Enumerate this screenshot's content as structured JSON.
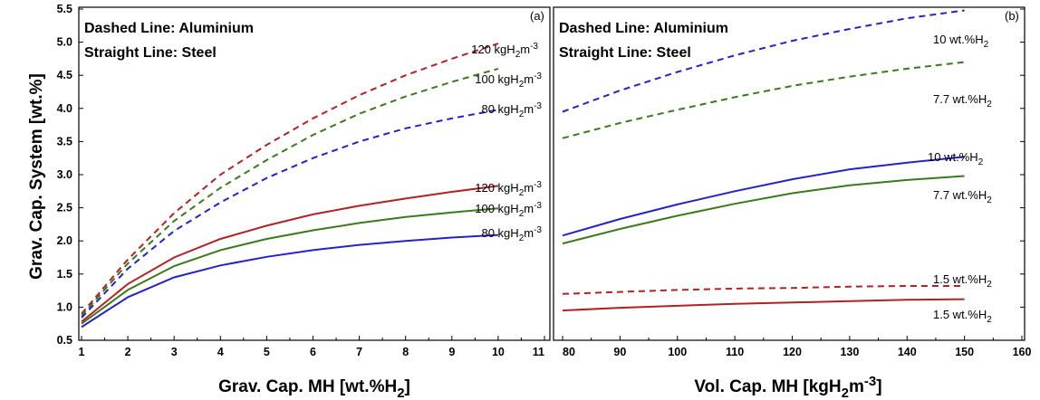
{
  "chart_data": [
    {
      "type": "line",
      "panel_label": "(a)",
      "notes": [
        "Dashed Line: Aluminium",
        "Straight Line: Steel"
      ],
      "xlabel": "Grav. Cap. MH [wt.%H2]",
      "ylabel": "Grav. Cap. System [wt.%]",
      "xlim": [
        1,
        11
      ],
      "ylim": [
        0.5,
        5.5
      ],
      "x_ticks": [
        "1",
        "2",
        "3",
        "4",
        "5",
        "6",
        "7",
        "8",
        "9",
        "10",
        "11"
      ],
      "y_ticks": [
        "0.5",
        "1.0",
        "1.5",
        "2.0",
        "2.5",
        "3.0",
        "3.5",
        "4.0",
        "4.5",
        "5.0",
        "5.5"
      ],
      "series": [
        {
          "name": "120 kgH2m-3",
          "material": "Aluminium",
          "color": "#b22222",
          "dash": true,
          "x": [
            1,
            2,
            3,
            4,
            5,
            6,
            7,
            8,
            9,
            10
          ],
          "y": [
            0.9,
            1.72,
            2.42,
            3.0,
            3.45,
            3.85,
            4.2,
            4.5,
            4.75,
            4.98
          ]
        },
        {
          "name": "100 kgH2m-3",
          "material": "Aluminium",
          "color": "#3a7a1a",
          "dash": true,
          "x": [
            1,
            2,
            3,
            4,
            5,
            6,
            7,
            8,
            9,
            10
          ],
          "y": [
            0.87,
            1.66,
            2.3,
            2.8,
            3.22,
            3.6,
            3.92,
            4.18,
            4.4,
            4.6
          ]
        },
        {
          "name": "80 kgH2m-3",
          "material": "Aluminium",
          "color": "#2323c8",
          "dash": true,
          "x": [
            1,
            2,
            3,
            4,
            5,
            6,
            7,
            8,
            9,
            10
          ],
          "y": [
            0.84,
            1.58,
            2.15,
            2.58,
            2.95,
            3.25,
            3.5,
            3.7,
            3.85,
            3.98
          ]
        },
        {
          "name": "120 kgH2m-3",
          "material": "Steel",
          "color": "#b22222",
          "dash": false,
          "x": [
            1,
            2,
            3,
            4,
            5,
            6,
            7,
            8,
            9,
            10
          ],
          "y": [
            0.78,
            1.35,
            1.75,
            2.03,
            2.23,
            2.4,
            2.53,
            2.64,
            2.74,
            2.83
          ]
        },
        {
          "name": "100 kgH2m-3",
          "material": "Steel",
          "color": "#3a7a1a",
          "dash": false,
          "x": [
            1,
            2,
            3,
            4,
            5,
            6,
            7,
            8,
            9,
            10
          ],
          "y": [
            0.75,
            1.26,
            1.62,
            1.86,
            2.03,
            2.16,
            2.27,
            2.36,
            2.43,
            2.49
          ]
        },
        {
          "name": "80 kgH2m-3",
          "material": "Steel",
          "color": "#2323c8",
          "dash": false,
          "x": [
            1,
            2,
            3,
            4,
            5,
            6,
            7,
            8,
            9,
            10
          ],
          "y": [
            0.7,
            1.15,
            1.45,
            1.63,
            1.76,
            1.86,
            1.94,
            2.0,
            2.05,
            2.09
          ]
        }
      ]
    },
    {
      "type": "line",
      "panel_label": "(b)",
      "notes": [
        "Dashed Line: Aluminium",
        "Straight Line: Steel"
      ],
      "xlabel": "Vol. Cap. MH [kgH2m-3]",
      "xlim": [
        80,
        160
      ],
      "ylim": [
        0.5,
        5.5
      ],
      "x_ticks": [
        "80",
        "90",
        "100",
        "110",
        "120",
        "130",
        "140",
        "150",
        "160"
      ],
      "series": [
        {
          "name": "10 wt.%H2",
          "material": "Aluminium",
          "color": "#2323c8",
          "dash": true,
          "x": [
            80,
            90,
            100,
            110,
            120,
            130,
            140,
            150
          ],
          "y": [
            3.95,
            4.27,
            4.55,
            4.8,
            5.02,
            5.2,
            5.36,
            5.48
          ]
        },
        {
          "name": "7.7 wt.%H2",
          "material": "Aluminium",
          "color": "#3a7a1a",
          "dash": true,
          "x": [
            80,
            90,
            100,
            110,
            120,
            130,
            140,
            150
          ],
          "y": [
            3.55,
            3.78,
            3.98,
            4.17,
            4.34,
            4.48,
            4.6,
            4.7
          ]
        },
        {
          "name": "10 wt.%H2",
          "material": "Steel",
          "color": "#2323c8",
          "dash": false,
          "x": [
            80,
            90,
            100,
            110,
            120,
            130,
            140,
            150
          ],
          "y": [
            2.08,
            2.33,
            2.55,
            2.75,
            2.93,
            3.08,
            3.18,
            3.27
          ]
        },
        {
          "name": "7.7 wt.%H2",
          "material": "Steel",
          "color": "#3a7a1a",
          "dash": false,
          "x": [
            80,
            90,
            100,
            110,
            120,
            130,
            140,
            150
          ],
          "y": [
            1.96,
            2.18,
            2.38,
            2.56,
            2.72,
            2.84,
            2.92,
            2.98
          ]
        },
        {
          "name": "1.5 wt.%H2",
          "material": "Aluminium",
          "color": "#b22222",
          "dash": true,
          "x": [
            80,
            90,
            100,
            110,
            120,
            130,
            140,
            150
          ],
          "y": [
            1.2,
            1.23,
            1.26,
            1.28,
            1.29,
            1.31,
            1.32,
            1.32
          ]
        },
        {
          "name": "1.5 wt.%H2",
          "material": "Steel",
          "color": "#b22222",
          "dash": false,
          "x": [
            80,
            90,
            100,
            110,
            120,
            130,
            140,
            150
          ],
          "y": [
            0.95,
            0.99,
            1.02,
            1.05,
            1.07,
            1.09,
            1.11,
            1.12
          ]
        }
      ]
    }
  ]
}
